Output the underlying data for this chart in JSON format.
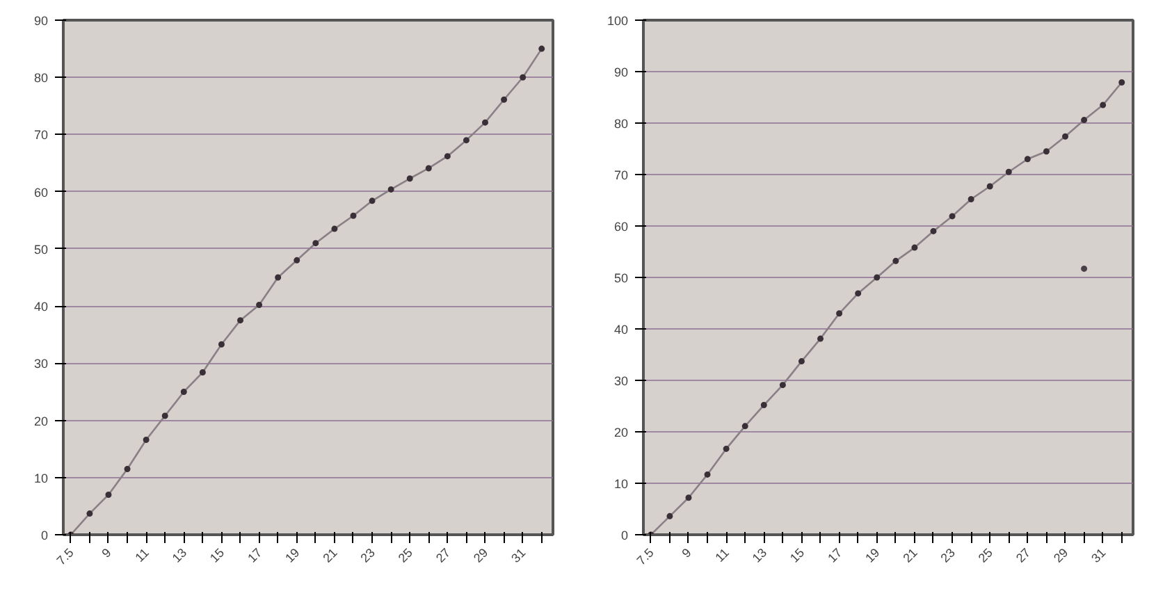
{
  "chart_data": [
    {
      "type": "line",
      "categories": [
        "7.5",
        null,
        "9",
        null,
        "11",
        null,
        "13",
        null,
        "15",
        null,
        "17",
        null,
        "19",
        null,
        "21",
        null,
        "23",
        null,
        "25",
        null,
        "27",
        null,
        "29",
        null,
        "31",
        null
      ],
      "series": [
        {
          "color": "#8a7f86",
          "values": [
            0,
            3.7,
            7.0,
            11.5,
            16.6,
            20.8,
            25.0,
            28.4,
            33.3,
            37.5,
            40.2,
            45.0,
            48.0,
            51.0,
            53.5,
            55.8,
            58.4,
            60.4,
            62.3,
            64.1,
            66.2,
            69.0,
            72.1,
            76.1,
            80.0,
            85.0
          ]
        }
      ],
      "ylim": [
        0,
        90
      ],
      "yticks": [
        0,
        10,
        20,
        30,
        40,
        50,
        60,
        70,
        80,
        90
      ],
      "grid": "y",
      "marker": "circle"
    },
    {
      "type": "line",
      "categories": [
        "7.5",
        null,
        "9",
        null,
        "11",
        null,
        "13",
        null,
        "15",
        null,
        "17",
        null,
        "19",
        null,
        "21",
        null,
        "23",
        null,
        "25",
        null,
        "27",
        null,
        "29",
        null,
        "31",
        null
      ],
      "series": [
        {
          "color": "#8a7f86",
          "values": [
            0,
            3.6,
            7.2,
            11.7,
            16.7,
            21.1,
            25.2,
            29.1,
            33.7,
            38.1,
            43.0,
            46.9,
            50.0,
            53.2,
            55.8,
            59.0,
            61.9,
            65.2,
            67.7,
            70.5,
            73.0,
            74.5,
            77.4,
            80.6,
            83.5,
            87.9
          ]
        },
        {
          "type": "scatter",
          "color": "#4a4048",
          "values": [
            null,
            null,
            null,
            null,
            null,
            null,
            null,
            null,
            null,
            null,
            null,
            null,
            null,
            null,
            null,
            null,
            null,
            null,
            null,
            null,
            null,
            null,
            null,
            51.7,
            null,
            null
          ]
        }
      ],
      "ylim": [
        0,
        100
      ],
      "yticks": [
        0,
        10,
        20,
        30,
        40,
        50,
        60,
        70,
        80,
        90,
        100
      ],
      "grid": "y",
      "marker": "circle"
    }
  ]
}
